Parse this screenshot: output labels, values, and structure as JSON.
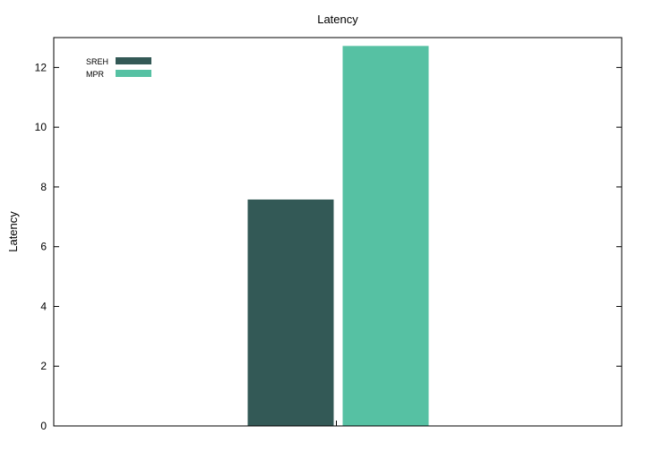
{
  "chart_data": {
    "type": "bar",
    "title": "Latency",
    "xlabel": "",
    "ylabel": "Latency",
    "categories": [
      ""
    ],
    "series": [
      {
        "name": "SREH",
        "values": [
          7.58
        ],
        "color": "#335956"
      },
      {
        "name": "MPR",
        "values": [
          12.72
        ],
        "color": "#56c1a3"
      }
    ],
    "ylim": [
      0,
      13
    ],
    "yticks": [
      0,
      2,
      4,
      6,
      8,
      10,
      12
    ],
    "grid": false,
    "legend_position": "top-left"
  }
}
